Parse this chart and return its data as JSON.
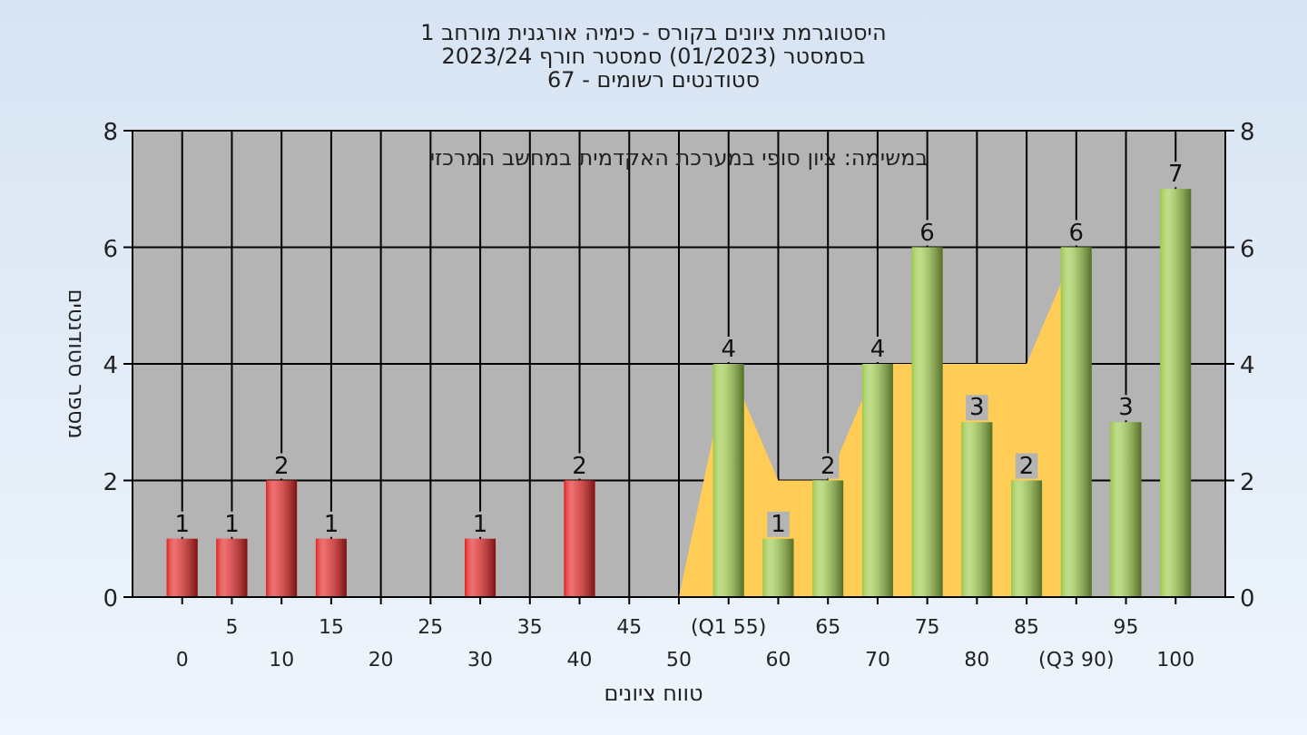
{
  "chart_data": {
    "type": "bar",
    "title": "היסטוגרמת ציונים בקורס - כימיה אורגנית מורחב 1",
    "subtitle": "בסמסטר  (01/2023)  סמסטר חורף 2023/24",
    "annotations": [
      "סטודנטים רשומים - 67",
      "במשימה: ציון סופי במערכת האקדמית במחשב המרכזי"
    ],
    "xlabel": "טווח ציונים",
    "ylabel": "מספר סטודנטים",
    "categories": [
      "0",
      "5",
      "10",
      "15",
      "20",
      "25",
      "30",
      "35",
      "40",
      "45",
      "50",
      "(Q1 55)",
      "60",
      "65",
      "70",
      "75",
      "80",
      "85",
      "(Q3 90)",
      "95",
      "100"
    ],
    "series": [
      {
        "type": "area",
        "color": "#ffcc55",
        "values": [
          null,
          null,
          null,
          null,
          null,
          null,
          null,
          null,
          null,
          null,
          0,
          4,
          2,
          2,
          4,
          null,
          4,
          4,
          6,
          null,
          null
        ]
      },
      {
        "colors": [
          "#e02020",
          "#e02020",
          "#e02020",
          "#e02020",
          null,
          null,
          "#e02020",
          null,
          "#e02020",
          null,
          null,
          "#9ac848",
          "#9ac848",
          "#9ac848",
          "#9ac848",
          "#9ac848",
          "#9ac848",
          "#9ac848",
          "#9ac848",
          "#9ac848",
          "#9ac848"
        ],
        "values": [
          1,
          1,
          2,
          1,
          null,
          null,
          1,
          null,
          2,
          null,
          null,
          4,
          1,
          2,
          4,
          6,
          3,
          2,
          6,
          3,
          7
        ],
        "value_labels": [
          "1",
          "1",
          "2",
          "1",
          null,
          null,
          "1",
          null,
          "2",
          null,
          null,
          "4",
          "1",
          "2",
          "4",
          "6",
          "3",
          "2",
          "6",
          "3",
          "7"
        ]
      }
    ],
    "ylim": [
      0,
      8
    ],
    "yticks": [
      0,
      2,
      4,
      6,
      8
    ],
    "y2lim": [
      0,
      8
    ],
    "y2ticks": [
      0,
      2,
      4,
      6,
      8
    ],
    "grid": true
  }
}
